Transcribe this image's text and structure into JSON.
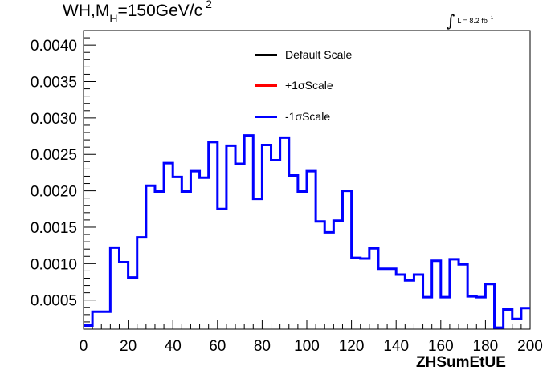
{
  "title": {
    "main": "WH,M",
    "sub": "H",
    "rest": "=150GeV/c",
    "sup": "2"
  },
  "lumi": {
    "integral": "∫",
    "text": "L = 8.2 fb",
    "sup": "-1"
  },
  "legend": [
    {
      "label": "Default Scale",
      "color": "#000000"
    },
    {
      "label": "+1σScale",
      "color": "#ff0000"
    },
    {
      "label": "-1σScale",
      "color": "#0000ff"
    }
  ],
  "chart_data": {
    "type": "line",
    "subtype": "step-histogram",
    "title": "WH,M_H=150GeV/c^2",
    "xlabel": "ZHSumEtUE",
    "ylabel": "",
    "xlim": [
      0,
      200
    ],
    "ylim": [
      0.0001,
      0.0042
    ],
    "x_ticks": [
      0,
      20,
      40,
      60,
      80,
      100,
      120,
      140,
      160,
      180,
      200
    ],
    "y_ticks": [
      0.0005,
      0.001,
      0.0015,
      0.002,
      0.0025,
      0.003,
      0.0035,
      0.004
    ],
    "y_tick_labels": [
      "0.0005",
      "0.0010",
      "0.0015",
      "0.0020",
      "0.0025",
      "0.0030",
      "0.0035",
      "0.0040"
    ],
    "bin_edges": [
      0,
      4,
      8,
      12,
      16,
      20,
      24,
      28,
      32,
      36,
      40,
      44,
      48,
      52,
      56,
      60,
      64,
      68,
      72,
      76,
      80,
      84,
      88,
      92,
      96,
      100,
      104,
      108,
      112,
      116,
      120,
      124,
      128,
      132,
      136,
      140,
      144,
      148,
      152,
      156,
      160,
      164,
      168,
      172,
      176,
      180,
      184,
      188,
      192,
      196,
      200
    ],
    "series": [
      {
        "name": "-1σScale",
        "color": "#0000ff",
        "values": [
          0.00015,
          0.00034,
          0.00034,
          0.00122,
          0.00102,
          0.00081,
          0.00136,
          0.00207,
          0.00199,
          0.00238,
          0.00219,
          0.00199,
          0.00227,
          0.00218,
          0.00267,
          0.00175,
          0.00262,
          0.00237,
          0.00276,
          0.00189,
          0.00263,
          0.00242,
          0.00273,
          0.00221,
          0.00199,
          0.00227,
          0.00158,
          0.00143,
          0.00159,
          0.002,
          0.00108,
          0.00107,
          0.00121,
          0.00093,
          0.00093,
          0.00085,
          0.00077,
          0.00085,
          0.00054,
          0.00104,
          0.00054,
          0.00106,
          0.00099,
          0.00055,
          0.00054,
          0.00072,
          0.00012,
          0.00037,
          0.00024,
          0.00039
        ]
      }
    ],
    "grid": false,
    "legend_position": "top-center"
  }
}
